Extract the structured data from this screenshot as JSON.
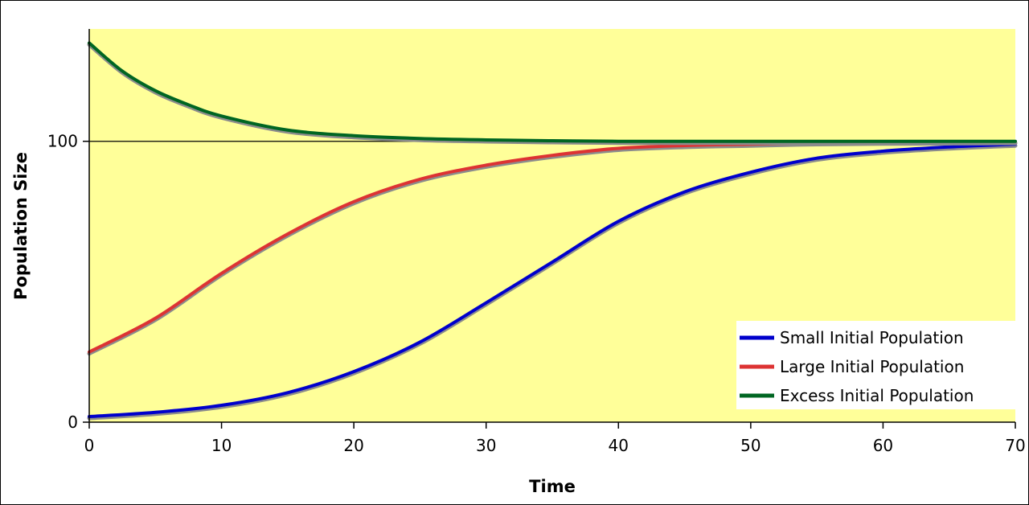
{
  "chart_data": {
    "type": "line",
    "title": "",
    "xlabel": "Time",
    "ylabel": "Population Size",
    "xlim": [
      0,
      70
    ],
    "ylim": [
      0,
      140
    ],
    "x_ticks": [
      "0",
      "10",
      "20",
      "30",
      "40",
      "50",
      "60",
      "70"
    ],
    "y_ticks": [
      "0",
      "100"
    ],
    "reference_line": 100,
    "grid": false,
    "legend_position": "bottom-right",
    "plot_background": "#ffff99",
    "series": [
      {
        "name": "Small Initial Population",
        "color": "#0000cc",
        "x": [
          0,
          5,
          10,
          15,
          20,
          25,
          30,
          35,
          40,
          45,
          50,
          55,
          60,
          65,
          70
        ],
        "y": [
          2,
          3.5,
          6,
          10.5,
          18,
          28.5,
          42.5,
          57,
          71.5,
          82,
          89,
          94,
          96.5,
          98,
          99
        ]
      },
      {
        "name": "Large Initial Population",
        "color": "#dd3333",
        "x": [
          0,
          5,
          10,
          15,
          20,
          25,
          30,
          35,
          40,
          45,
          50,
          55,
          60,
          65,
          70
        ],
        "y": [
          25,
          37,
          53,
          67,
          78.5,
          86.5,
          91.5,
          95,
          97.5,
          98.5,
          99,
          99.5,
          99.7,
          99.8,
          99.9
        ]
      },
      {
        "name": "Excess Initial Population",
        "color": "#006622",
        "x": [
          0,
          2.5,
          5,
          7.5,
          10,
          15,
          20,
          25,
          30,
          35,
          40,
          50,
          60,
          70
        ],
        "y": [
          135,
          125,
          118,
          113,
          109,
          104,
          102,
          101,
          100.5,
          100.2,
          100,
          100,
          100,
          100
        ]
      }
    ]
  }
}
